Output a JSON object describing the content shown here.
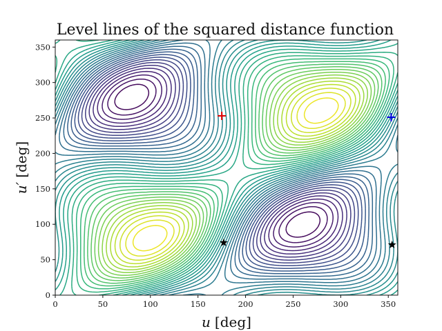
{
  "chart_data": {
    "type": "contour",
    "title": "Level lines of the squared distance function",
    "xlabel_var": "u",
    "ylabel_var": "u′",
    "unit": "[deg]",
    "xlim": [
      0,
      360
    ],
    "ylim": [
      0,
      360
    ],
    "xticks": [
      0,
      50,
      100,
      150,
      200,
      250,
      300,
      350
    ],
    "yticks": [
      0,
      50,
      100,
      150,
      200,
      250,
      300,
      350
    ],
    "colormap": "viridis",
    "grid": false,
    "legend": "none",
    "markers": [
      {
        "kind": "plus",
        "color": "#e00000",
        "x": 175,
        "y": 253
      },
      {
        "kind": "plus",
        "color": "#0000e0",
        "x": 353,
        "y": 251
      },
      {
        "kind": "star",
        "color": "#000000",
        "x": 177,
        "y": 74
      },
      {
        "kind": "star",
        "color": "#000000",
        "x": 354,
        "y": 71
      }
    ]
  }
}
